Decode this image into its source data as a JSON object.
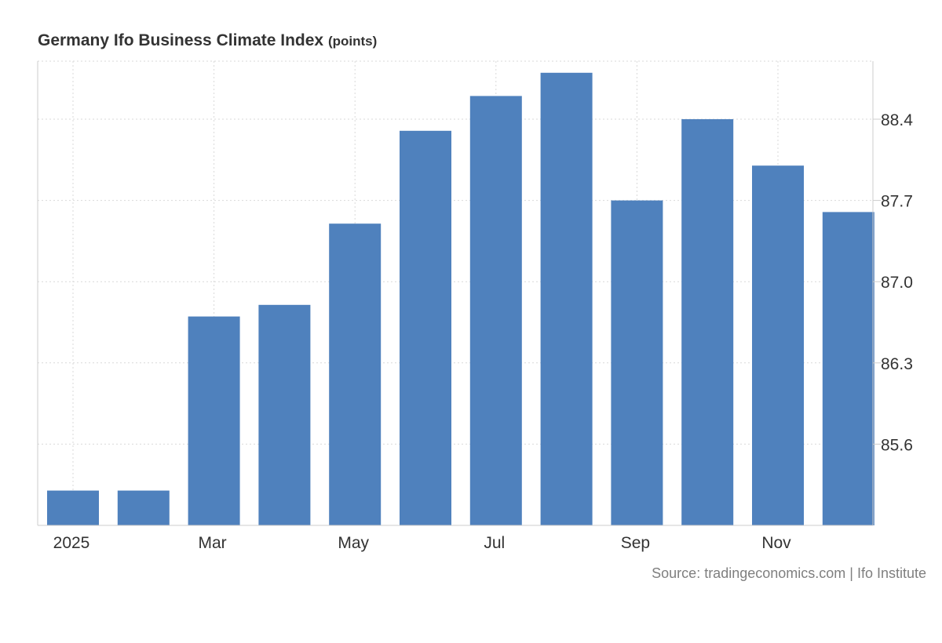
{
  "chart_data": {
    "type": "bar",
    "title": "Germany Ifo Business Climate Index",
    "unit": "(points)",
    "categories": [
      "Jan 2025",
      "Feb 2025",
      "Mar 2025",
      "Apr 2025",
      "May 2025",
      "Jun 2025",
      "Jul 2025",
      "Aug 2025",
      "Sep 2025",
      "Oct 2025",
      "Nov 2025",
      "Dec 2025"
    ],
    "x_tick_labels": [
      "2025",
      "",
      "Mar",
      "",
      "May",
      "",
      "Jul",
      "",
      "Sep",
      "",
      "Nov",
      ""
    ],
    "values": [
      85.2,
      85.2,
      86.7,
      86.8,
      87.5,
      88.3,
      88.6,
      88.8,
      87.7,
      88.4,
      88.0,
      87.6
    ],
    "y_ticks": [
      "85.6",
      "86.3",
      "87.0",
      "87.7",
      "88.4"
    ],
    "ylim": [
      84.9,
      88.9
    ],
    "bar_color": "#4f81bd",
    "grid": true,
    "y_axis_position": "right"
  },
  "source": "Source: tradingeconomics.com | Ifo Institute"
}
